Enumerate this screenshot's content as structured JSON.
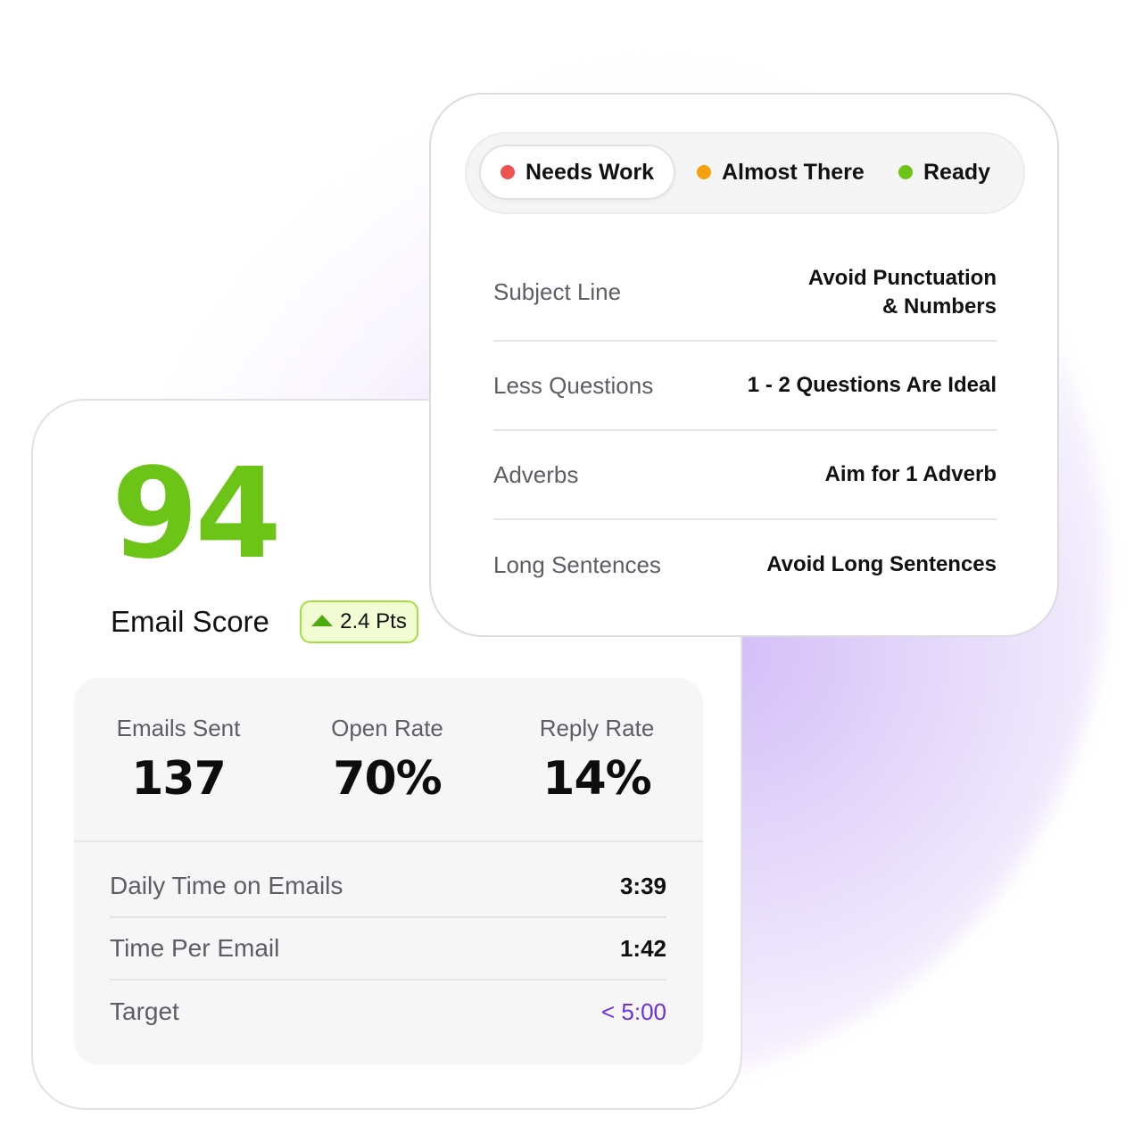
{
  "score_card": {
    "score": "94",
    "label": "Email Score",
    "delta": "2.4 Pts",
    "stats": [
      {
        "label": "Emails Sent",
        "value": "137"
      },
      {
        "label": "Open Rate",
        "value": "70%"
      },
      {
        "label": "Reply Rate",
        "value": "14%"
      }
    ],
    "metrics": [
      {
        "label": "Daily Time on Emails",
        "value": "3:39"
      },
      {
        "label": "Time Per Email",
        "value": "1:42"
      },
      {
        "label": "Target",
        "value": "< 5:00"
      }
    ]
  },
  "checklist": {
    "tabs": [
      {
        "label": "Needs Work",
        "color": "#f0524f",
        "active": true
      },
      {
        "label": "Almost There",
        "color": "#f5a10e",
        "active": false
      },
      {
        "label": "Ready",
        "color": "#6cc417",
        "active": false
      }
    ],
    "items": [
      {
        "label": "Subject Line",
        "value_line1": "Avoid Punctuation",
        "value_line2": "& Numbers"
      },
      {
        "label": "Less Questions",
        "value_line1": "1 - 2 Questions Are Ideal"
      },
      {
        "label": "Adverbs",
        "value_line1": "Aim for 1 Adverb"
      },
      {
        "label": "Long Sentences",
        "value_line1": "Avoid Long Sentences"
      }
    ]
  },
  "colors": {
    "score_green": "#6cc417",
    "target_accent": "#6a2ee8",
    "glow": "#c4a8f5"
  }
}
